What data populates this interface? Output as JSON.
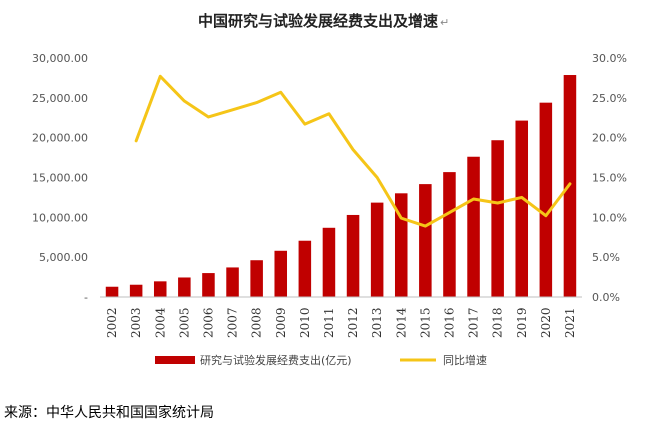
{
  "chart_data": {
    "type": "bar+line",
    "title": "中国研究与试验发展经费支出及增速",
    "title_mark": "↵",
    "categories": [
      "2002",
      "2003",
      "2004",
      "2005",
      "2006",
      "2007",
      "2008",
      "2009",
      "2010",
      "2011",
      "2012",
      "2013",
      "2014",
      "2015",
      "2016",
      "2017",
      "2018",
      "2019",
      "2020",
      "2021"
    ],
    "series": [
      {
        "name": "研究与试验发展经费支出(亿元)",
        "type": "bar",
        "axis": "left",
        "color": "#c00000",
        "values": [
          1288,
          1540,
          1966,
          2450,
          3003,
          3710,
          4616,
          5802,
          7063,
          8687,
          10298,
          11847,
          13016,
          14170,
          15677,
          17606,
          19678,
          22144,
          24393,
          27864
        ]
      },
      {
        "name": "同比增速",
        "type": "line",
        "axis": "right",
        "color": "#f5c518",
        "values": [
          null,
          19.6,
          27.7,
          24.6,
          22.6,
          23.5,
          24.4,
          25.7,
          21.7,
          23.0,
          18.5,
          15.0,
          9.9,
          8.9,
          10.6,
          12.3,
          11.8,
          12.5,
          10.2,
          14.2
        ]
      }
    ],
    "left_axis": {
      "ylim": [
        0,
        30000
      ],
      "ticks": [
        0,
        5000,
        10000,
        15000,
        20000,
        25000,
        30000
      ],
      "tick_labels": [
        "-",
        "5,000.00",
        "10,000.00",
        "15,000.00",
        "20,000.00",
        "25,000.00",
        "30,000.00"
      ]
    },
    "right_axis": {
      "ylim": [
        0,
        30
      ],
      "ticks": [
        0,
        5,
        10,
        15,
        20,
        25,
        30
      ],
      "tick_labels": [
        "0.0%",
        "5.0%",
        "10.0%",
        "15.0%",
        "20.0%",
        "25.0%",
        "30.0%"
      ]
    },
    "grid": false,
    "legend_position": "bottom"
  },
  "source_note": "来源：中华人民共和国国家统计局"
}
